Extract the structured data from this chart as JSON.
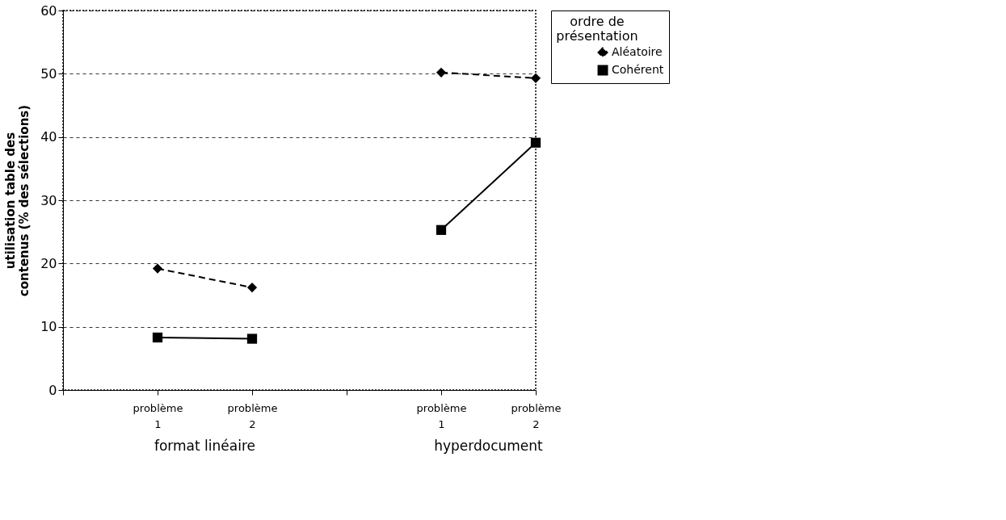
{
  "chart_data": {
    "type": "line",
    "categories": [
      null,
      "problème 1",
      "problème 2",
      null,
      "problème 1",
      "problème 2"
    ],
    "series": [
      {
        "name": "Aléatoire",
        "color": "#000000",
        "line_style": "dashed",
        "marker": "diamond",
        "values": [
          null,
          19.2,
          16.2,
          null,
          50.2,
          49.3
        ]
      },
      {
        "name": "Cohérent",
        "color": "#000000",
        "line_style": "solid",
        "marker": "square",
        "values": [
          null,
          8.3,
          8.1,
          null,
          25.3,
          39.1
        ]
      }
    ],
    "ylabel": "utilisation table des contenus (% des sélections)",
    "legend_title": "ordre de présentation",
    "annotations": [
      "format linéaire",
      "hyperdocument"
    ],
    "ylim": [
      0,
      60
    ],
    "yticks": [
      0,
      10,
      20,
      30,
      40,
      50,
      60
    ],
    "grid": "y",
    "legend": "right"
  }
}
